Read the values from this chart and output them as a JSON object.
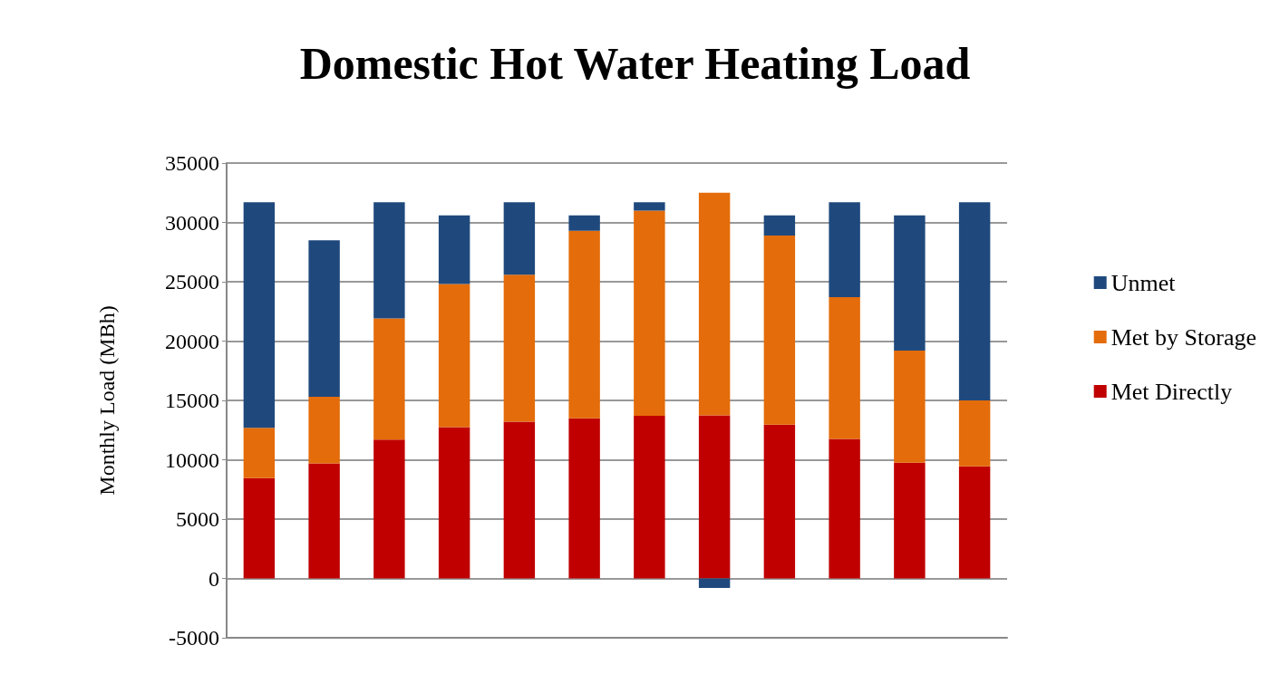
{
  "chart_data": {
    "type": "bar",
    "title": "Domestic Hot Water Heating Load",
    "ylabel": "Monthly Load (MBh)",
    "categories": [
      null,
      null,
      null,
      null,
      null,
      null,
      null,
      null,
      null,
      null,
      null,
      null
    ],
    "stacked": true,
    "series": [
      {
        "name": "Met Directly",
        "color": "#c00000",
        "values": [
          8450,
          9700,
          11700,
          12750,
          13200,
          13500,
          13700,
          13750,
          12950,
          11750,
          9750,
          9450
        ]
      },
      {
        "name": "Met by Storage",
        "color": "#e46c0a",
        "values": [
          4250,
          5600,
          10200,
          12050,
          12400,
          15800,
          17300,
          18750,
          15950,
          11950,
          9450,
          5550
        ]
      },
      {
        "name": "Unmet",
        "color": "#1f497d",
        "values": [
          19000,
          13200,
          9800,
          5800,
          6100,
          1300,
          700,
          -800,
          1700,
          8000,
          11400,
          16700
        ]
      }
    ],
    "ylim": [
      -5000,
      35000
    ],
    "yticks": [
      -5000,
      0,
      5000,
      10000,
      15000,
      20000,
      25000,
      30000,
      35000
    ],
    "grid": "y",
    "legend": "right"
  }
}
